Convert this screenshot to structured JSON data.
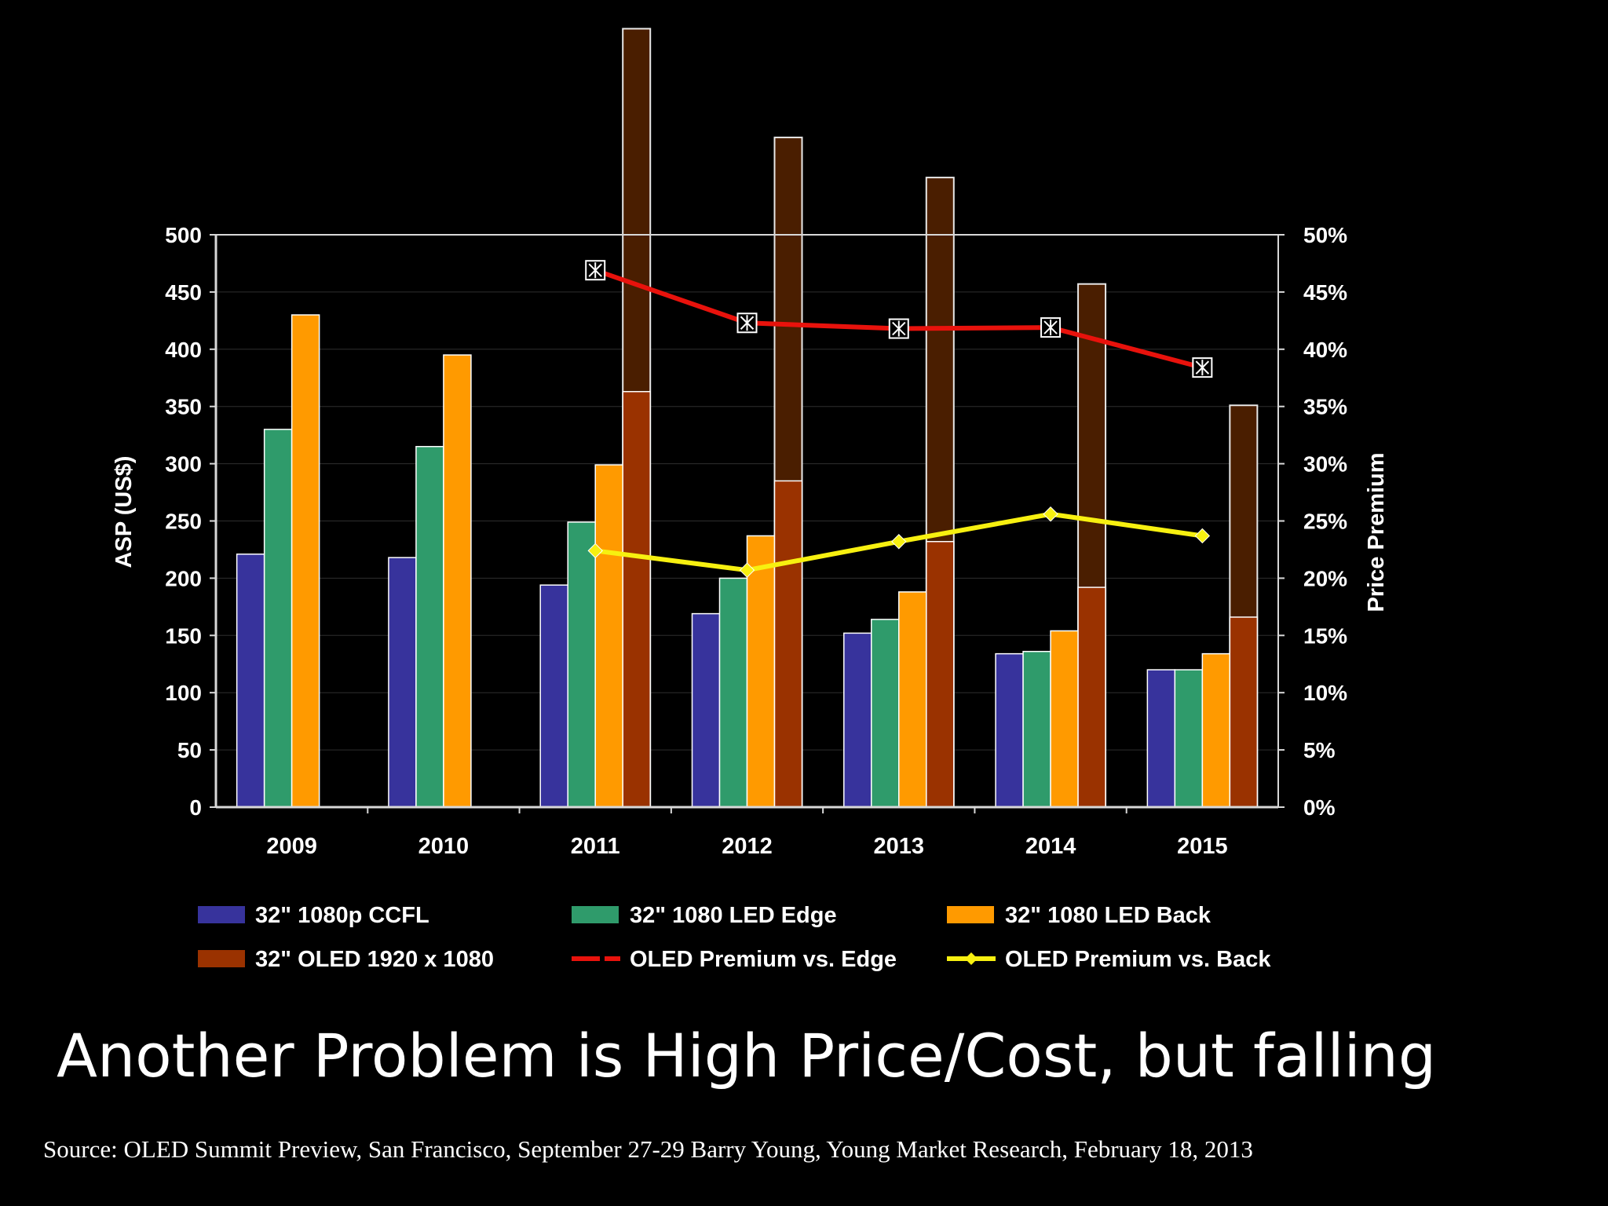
{
  "slide": {
    "title": "Another Problem is High Price/Cost, but falling",
    "source": "Source: OLED Summit Preview, San Francisco, September 27-29 Barry Young, Young Market Research, February 18, 2013"
  },
  "chart_data": {
    "type": "bar",
    "categories": [
      "2009",
      "2010",
      "2011",
      "2012",
      "2013",
      "2014",
      "2015"
    ],
    "ylabel": "ASP (US$)",
    "ylim": [
      0,
      500
    ],
    "y_ticks": [
      "0",
      "50",
      "100",
      "150",
      "200",
      "250",
      "300",
      "350",
      "400",
      "450",
      "500"
    ],
    "y2label": "Price Premium",
    "y2lim": [
      0,
      50
    ],
    "y2_ticks": [
      "0%",
      "5%",
      "10%",
      "15%",
      "20%",
      "25%",
      "30%",
      "35%",
      "40%",
      "45%",
      "50%"
    ],
    "series": [
      {
        "name": "32\" 1080p CCFL",
        "kind": "bar",
        "color": "#37339c",
        "values": [
          221,
          218,
          194,
          169,
          152,
          134,
          120
        ]
      },
      {
        "name": "32\" 1080 LED Edge",
        "kind": "bar",
        "color": "#2f9b6b",
        "values": [
          330,
          315,
          249,
          200,
          164,
          136,
          120
        ]
      },
      {
        "name": "32\" 1080 LED Back",
        "kind": "bar",
        "color": "#ff9a00",
        "values": [
          430,
          395,
          299,
          237,
          188,
          154,
          134
        ]
      },
      {
        "name": "32\" OLED 1920 x 1080",
        "kind": "bar",
        "color": "#9a3200",
        "values": [
          null,
          null,
          363,
          285,
          232,
          192,
          166
        ]
      },
      {
        "name": "OLED Premium vs. Edge",
        "kind": "line",
        "axis": "right",
        "color": "#e8120c",
        "values": [
          null,
          null,
          46.9,
          42.3,
          41.8,
          41.9,
          38.4
        ]
      },
      {
        "name": "OLED Premium vs. Back",
        "kind": "line",
        "axis": "right",
        "color": "#f7f010",
        "values": [
          null,
          null,
          22.4,
          20.7,
          23.2,
          25.6,
          23.7
        ]
      }
    ],
    "oled_total_price": {
      "note": "extended OLED bars above plot area",
      "color": "#4a1e00",
      "values": [
        null,
        null,
        680,
        585,
        550,
        457,
        351
      ]
    },
    "legend_position": "bottom"
  }
}
